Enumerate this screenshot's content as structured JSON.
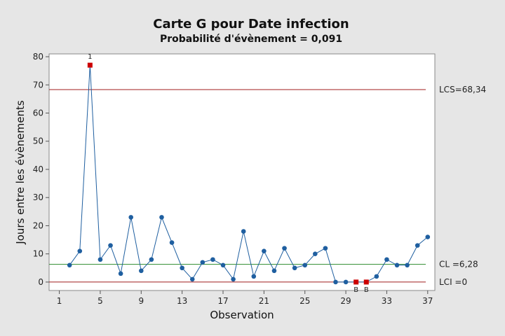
{
  "chart_data": {
    "type": "line",
    "title": "Carte G pour Date infection",
    "subtitle": "Probabilité d'évènement = 0,091",
    "xlabel": "Observation",
    "ylabel": "Jours entre les évènements",
    "xlim": [
      0,
      37.7
    ],
    "ylim": [
      -3,
      81
    ],
    "x_ticks": [
      1,
      5,
      9,
      13,
      17,
      21,
      25,
      29,
      33,
      37
    ],
    "y_ticks": [
      0,
      10,
      20,
      30,
      40,
      50,
      60,
      70,
      80
    ],
    "grid": false,
    "series": [
      {
        "x": [
          2,
          3,
          4,
          5,
          6,
          7,
          8,
          9,
          10,
          11,
          12,
          13,
          14,
          15,
          16,
          17,
          18,
          19,
          20,
          21,
          22,
          23,
          24,
          25,
          26,
          27,
          28,
          29,
          30,
          31,
          32,
          33,
          34,
          35,
          36,
          37
        ],
        "values": [
          6,
          11,
          77,
          8,
          13,
          3,
          23,
          4,
          8,
          23,
          14,
          5,
          1,
          7,
          8,
          6,
          1,
          18,
          2,
          11,
          4,
          12,
          5,
          6,
          10,
          12,
          0,
          0,
          0,
          0,
          2,
          8,
          6,
          6,
          13,
          16
        ],
        "color": "#1f5fa0"
      }
    ],
    "out_of_control": [
      {
        "x": 4,
        "y": 77,
        "flag": "1"
      },
      {
        "x": 30,
        "y": 0,
        "flag": "B"
      },
      {
        "x": 31,
        "y": 0,
        "flag": "B"
      }
    ],
    "control_limits": [
      {
        "value": 68.34,
        "label": "LCS=68,34",
        "color": "#a01c1c"
      },
      {
        "value": 6.28,
        "label": "CL =6,28",
        "color": "#2e8b2e"
      },
      {
        "value": 0,
        "label": "LCI =0",
        "color": "#a01c1c"
      }
    ],
    "colors": {
      "line": "#1f5fa0",
      "out_of_control": "#cc0000",
      "plot_bg": "#ffffff",
      "page_bg": "#e6e6e6"
    }
  }
}
